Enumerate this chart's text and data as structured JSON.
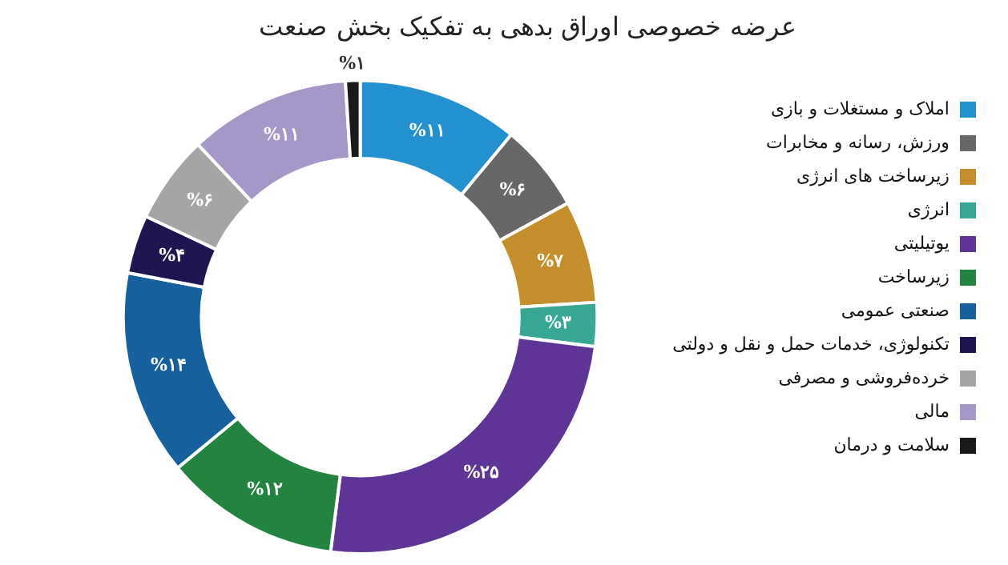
{
  "chart_data": {
    "type": "donut",
    "title": "عرضه خصوصی اوراق بدهی به تفکیک بخش صنعت",
    "categories": [
      "املاک و مستغلات و بازی",
      "ورزش، رسانه و مخابرات",
      "زیرساخت های انرژی",
      "انرژی",
      "یوتیلیتی",
      "زیرساخت",
      "صنعتی عمومی",
      "تکنولوژی، خدمات حمل و نقل و دولتی",
      "خرده‌فروشی و مصرفی",
      "مالی",
      "سلامت و درمان"
    ],
    "values": [
      11,
      6,
      7,
      3,
      25,
      12,
      14,
      4,
      6,
      11,
      1
    ],
    "value_labels": [
      "%۱۱",
      "%۶",
      "%۷",
      "%۳",
      "%۲۵",
      "%۱۲",
      "%۱۴",
      "%۴",
      "%۶",
      "%۱۱",
      "%۱"
    ],
    "colors": [
      "#2390d0",
      "#676767",
      "#c48f2a",
      "#37a895",
      "#5e3496",
      "#22843f",
      "#17609e",
      "#1e1650",
      "#a5a5a5",
      "#a697c9",
      "#1a1a1a"
    ],
    "legend": "right"
  }
}
